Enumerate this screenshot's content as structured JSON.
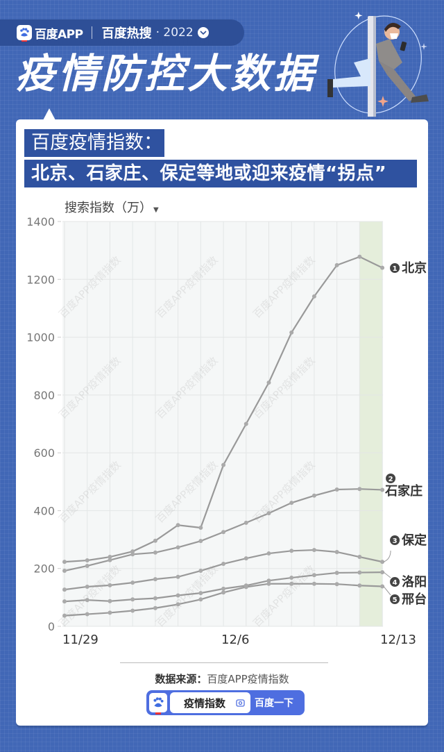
{
  "header": {
    "brand": "百度APP",
    "section": "百度热搜",
    "year": "· 2022",
    "title": "疫情防控大数据"
  },
  "card": {
    "heading1": "百度疫情指数：",
    "heading2": "北京、石家庄、保定等地或迎来疫情“拐点”",
    "y_axis_label": "搜索指数（万）",
    "source_label": "数据来源：",
    "source_value": "百度APP疫情指数",
    "search": {
      "query": "疫情指数",
      "button": "百度一下"
    }
  },
  "colors": {
    "background": "#4167b6",
    "heading_box": "#2f52a0",
    "line": "#999999",
    "highlight_band": "#e5eedb",
    "plot_bg": "#f5f7f7"
  },
  "chart_data": {
    "type": "line",
    "title": "百度疫情指数：北京、石家庄、保定等地或迎来疫情“拐点”",
    "xlabel": "",
    "ylabel": "搜索指数（万）",
    "ylim": [
      0,
      1400
    ],
    "yticks": [
      0,
      200,
      400,
      600,
      800,
      1000,
      1200,
      1400
    ],
    "x": [
      "11/29",
      "11/30",
      "12/1",
      "12/2",
      "12/3",
      "12/4",
      "12/5",
      "12/6",
      "12/7",
      "12/8",
      "12/9",
      "12/10",
      "12/11",
      "12/12",
      "12/13"
    ],
    "xtick_labels": [
      "11/29",
      "12/6",
      "12/13"
    ],
    "grid": true,
    "highlight_range": [
      "12/12",
      "12/13"
    ],
    "legend_position": "right, end-of-line labels",
    "series": [
      {
        "rank": "1",
        "name": "北京",
        "values": [
          223,
          228,
          240,
          259,
          296,
          350,
          341,
          558,
          700,
          843,
          1016,
          1141,
          1249,
          1278,
          1240
        ]
      },
      {
        "rank": "2",
        "name": "石家庄",
        "values": [
          192,
          209,
          229,
          249,
          255,
          273,
          295,
          326,
          358,
          391,
          427,
          452,
          473,
          475,
          472
        ]
      },
      {
        "rank": "3",
        "name": "保定",
        "values": [
          127,
          137,
          142,
          151,
          163,
          171,
          192,
          216,
          235,
          252,
          261,
          264,
          257,
          240,
          223
        ]
      },
      {
        "rank": "4",
        "name": "洛阳",
        "values": [
          86,
          91,
          87,
          93,
          97,
          107,
          115,
          130,
          141,
          158,
          168,
          177,
          185,
          186,
          187
        ]
      },
      {
        "rank": "5",
        "name": "邢台",
        "values": [
          37,
          42,
          47,
          54,
          63,
          76,
          93,
          117,
          136,
          147,
          147,
          147,
          146,
          141,
          138
        ]
      }
    ],
    "watermark": "百度APP疫情指数"
  }
}
